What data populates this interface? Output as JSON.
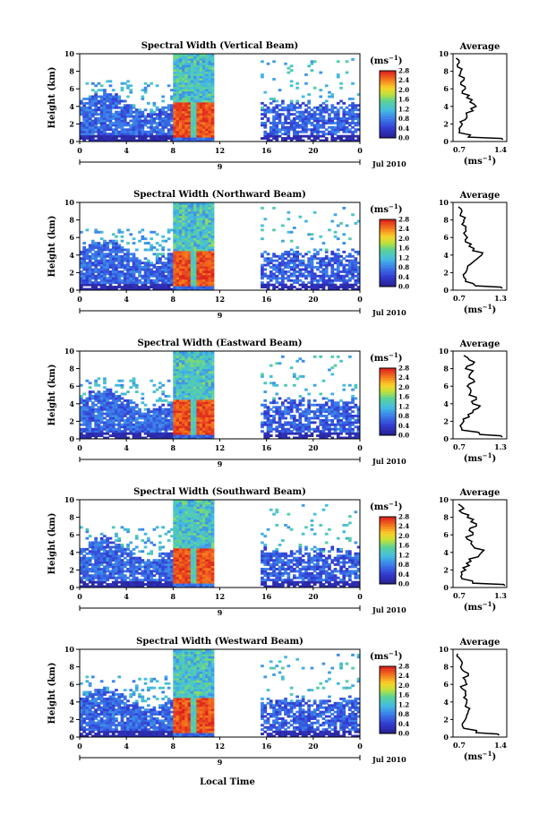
{
  "common": {
    "ylabel": "Height (km)",
    "unit": "(ms",
    "unit_exp": "−1",
    "unit_close": ")",
    "date_label": "Jul 2010",
    "day_label": "9",
    "xlabel": "Local Time",
    "avg_title": "Average",
    "time_ticks": [
      0,
      4,
      8,
      12,
      16,
      20,
      0
    ],
    "height_ticks": [
      0,
      2,
      4,
      6,
      8,
      10
    ],
    "avg_height_ticks": [
      0,
      2,
      4,
      6,
      8,
      10
    ],
    "colorbar_ticks": [
      "2.8",
      "2.4",
      "2.0",
      "1.6",
      "1.2",
      "0.8",
      "0.4",
      "0.0"
    ],
    "colors": {
      "deep_blue": "#2e2fb8",
      "blue": "#3c56d8",
      "light_blue": "#4fa8e8",
      "cyan": "#44c4d8",
      "red": "#e83a20",
      "orange": "#f08a20"
    }
  },
  "chart_data": [
    {
      "type": "heatmap",
      "title": "Spectral Width (Vertical Beam)",
      "x_range": [
        0,
        24
      ],
      "y_range": [
        0,
        10
      ],
      "value_range": [
        0.0,
        2.8
      ],
      "data_gap_hours": [
        11.4,
        15.3
      ],
      "average": {
        "type": "line",
        "title": "Average",
        "xlim": [
          0.7,
          1.4
        ],
        "xticks": [
          "0.7",
          "1.4"
        ],
        "heights_km": [
          0.2,
          0.5,
          1.0,
          1.5,
          2.0,
          2.5,
          3.0,
          3.5,
          4.0,
          4.5,
          5.0,
          5.5,
          6.0,
          6.5,
          7.0,
          7.5,
          8.0,
          8.5,
          9.0,
          9.5
        ],
        "values": [
          1.35,
          0.9,
          0.78,
          0.78,
          0.82,
          0.86,
          0.88,
          0.96,
          1.0,
          0.92,
          0.88,
          0.82,
          0.86,
          0.8,
          0.84,
          0.78,
          0.8,
          0.76,
          0.78,
          0.74
        ]
      }
    },
    {
      "type": "heatmap",
      "title": "Spectral Width (Northward Beam)",
      "x_range": [
        0,
        24
      ],
      "y_range": [
        0,
        10
      ],
      "value_range": [
        0.0,
        2.8
      ],
      "data_gap_hours": [
        11.4,
        15.3
      ],
      "average": {
        "type": "line",
        "title": "Average",
        "xlim": [
          0.7,
          1.3
        ],
        "xticks": [
          "0.7",
          "1.3"
        ],
        "heights_km": [
          0.2,
          0.5,
          1.0,
          1.5,
          2.0,
          2.5,
          3.0,
          3.5,
          4.0,
          4.5,
          5.0,
          5.5,
          6.0,
          6.5,
          7.0,
          7.5,
          8.0,
          8.5,
          9.0,
          9.5
        ],
        "values": [
          1.25,
          0.95,
          0.84,
          0.82,
          0.84,
          0.86,
          0.9,
          0.96,
          1.02,
          0.92,
          0.88,
          0.84,
          0.86,
          0.82,
          0.84,
          0.8,
          0.82,
          0.78,
          0.8,
          0.76
        ]
      }
    },
    {
      "type": "heatmap",
      "title": "Spectral Width (Eastward Beam)",
      "x_range": [
        0,
        24
      ],
      "y_range": [
        0,
        10
      ],
      "value_range": [
        0.0,
        2.8
      ],
      "data_gap_hours": [
        11.4,
        15.3
      ],
      "average": {
        "type": "line",
        "title": "Average",
        "xlim": [
          0.7,
          1.3
        ],
        "xticks": [
          "0.7",
          "1.3"
        ],
        "heights_km": [
          0.2,
          0.5,
          1.0,
          1.5,
          2.0,
          2.5,
          3.0,
          3.5,
          4.0,
          4.5,
          5.0,
          5.5,
          6.0,
          6.5,
          7.0,
          7.5,
          8.0,
          8.5,
          9.0,
          9.5
        ],
        "values": [
          1.25,
          1.0,
          0.8,
          0.78,
          0.82,
          0.88,
          0.92,
          0.98,
          0.92,
          0.96,
          0.88,
          0.9,
          0.86,
          0.94,
          0.88,
          0.9,
          0.84,
          0.92,
          0.88,
          0.82
        ]
      }
    },
    {
      "type": "heatmap",
      "title": "Spectral Width (Southward Beam)",
      "x_range": [
        0,
        24
      ],
      "y_range": [
        0,
        10
      ],
      "value_range": [
        0.0,
        2.8
      ],
      "data_gap_hours": [
        11.4,
        15.3
      ],
      "average": {
        "type": "line",
        "title": "Average",
        "xlim": [
          0.7,
          1.3
        ],
        "xticks": [
          "0.7",
          "1.3"
        ],
        "heights_km": [
          0.2,
          0.5,
          1.0,
          1.5,
          2.0,
          2.5,
          3.0,
          3.5,
          4.0,
          4.5,
          5.0,
          5.5,
          6.0,
          6.5,
          7.0,
          7.5,
          8.0,
          8.5,
          9.0,
          9.5
        ],
        "values": [
          1.28,
          0.92,
          0.8,
          0.8,
          0.84,
          0.88,
          0.9,
          0.98,
          1.02,
          0.94,
          0.9,
          0.86,
          0.92,
          0.88,
          0.96,
          0.9,
          0.86,
          0.8,
          0.82,
          0.76
        ]
      }
    },
    {
      "type": "heatmap",
      "title": "Spectral Width (Westward Beam)",
      "x_range": [
        0,
        24
      ],
      "y_range": [
        0,
        10
      ],
      "value_range": [
        0.0,
        2.8
      ],
      "data_gap_hours": [
        11.4,
        15.3
      ],
      "average": {
        "type": "line",
        "title": "Average",
        "xlim": [
          0.7,
          1.4
        ],
        "xticks": [
          "0.7",
          "1.4"
        ],
        "heights_km": [
          0.2,
          0.5,
          1.0,
          1.5,
          2.0,
          2.5,
          3.0,
          3.5,
          4.0,
          4.5,
          5.0,
          5.5,
          6.0,
          6.5,
          7.0,
          7.5,
          8.0,
          8.5,
          9.0,
          9.5
        ],
        "values": [
          1.3,
          1.0,
          0.84,
          0.82,
          0.86,
          0.88,
          0.9,
          0.86,
          0.88,
          0.84,
          0.86,
          0.82,
          0.88,
          0.86,
          0.9,
          0.84,
          0.8,
          0.82,
          0.78,
          0.76
        ]
      }
    }
  ]
}
